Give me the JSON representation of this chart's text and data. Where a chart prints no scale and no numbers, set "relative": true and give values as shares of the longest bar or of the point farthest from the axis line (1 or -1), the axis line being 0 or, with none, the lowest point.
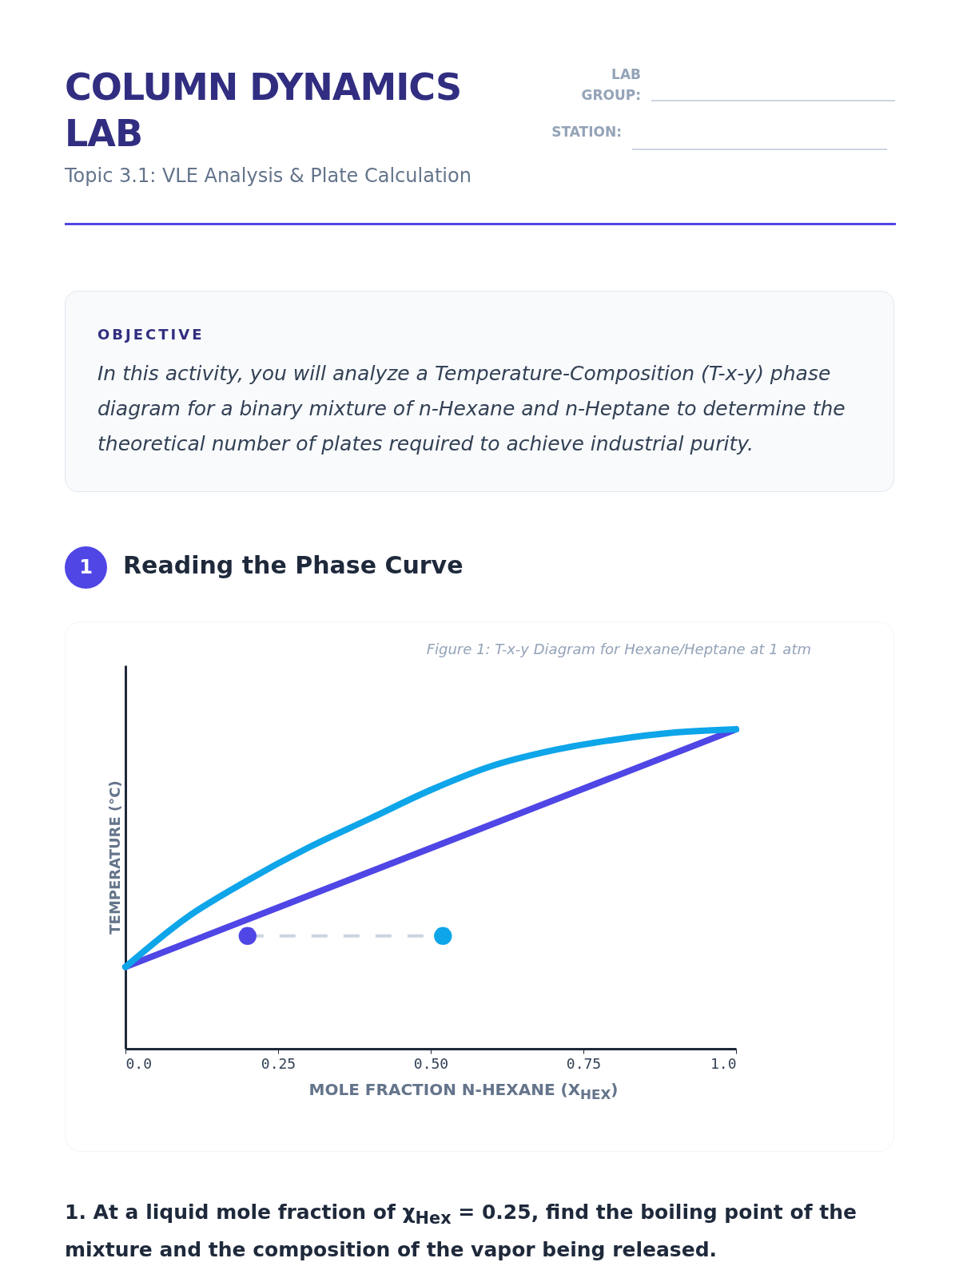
{
  "chart_data": {
    "type": "line",
    "title": "Figure 1: T-x-y Diagram for Hexane/Heptane at 1 atm",
    "xlabel": "MOLE FRACTION N-HEXANE (X$_{HEX}$)",
    "ylabel": "TEMPERATURE (°C)",
    "relative": true,
    "xlim": [
      0,
      1
    ],
    "xticks": [
      {
        "value": 0,
        "label": "0.0"
      },
      0.25,
      {
        "value": 0.5,
        "label": "0.50"
      },
      0.75,
      {
        "value": 1,
        "label": "1.0"
      }
    ],
    "series": [
      {
        "color": "#4f46e5",
        "x": [
          0,
          1
        ],
        "values": [
          0.256,
          1
        ]
      },
      {
        "color": "#0ea5e9",
        "x": [
          0,
          0.1,
          0.2,
          0.3,
          0.4,
          0.5,
          0.6,
          0.7,
          0.8,
          0.9,
          1
        ],
        "values": [
          0.256,
          0.41,
          0.527,
          0.63,
          0.72,
          0.81,
          0.885,
          0.934,
          0.967,
          0.99,
          1
        ]
      },
      {
        "color": "#cbd5e1",
        "line_style": "dashed",
        "x": [
          0.2,
          0.52
        ],
        "values": [
          0.353,
          0.353
        ]
      },
      {
        "type": "scatter",
        "colors": [
          "#4f46e5",
          "#0ea5e9"
        ],
        "x": [
          0.2,
          0.52
        ],
        "values": [
          0.353,
          0.353
        ]
      }
    ],
    "annotations": [
      "COLUMN DYNAMICS LAB",
      "Topic 3.1: VLE Analysis & Plate Calculation",
      "LAB GROUP:",
      "STATION:",
      "OBJECTIVE",
      "In this activity, you will analyze a Temperature-Composition (T-x-y) phase diagram for a binary mixture of n-Hexane and n-Heptane to determine the theoretical number of plates required to achieve industrial purity.",
      "1",
      "Reading the Phase Curve",
      "1. At a liquid mole fraction of χ$_{Hex}$ = 0.25, find the boiling point of the mixture and the composition of the vapor being released."
    ]
  }
}
